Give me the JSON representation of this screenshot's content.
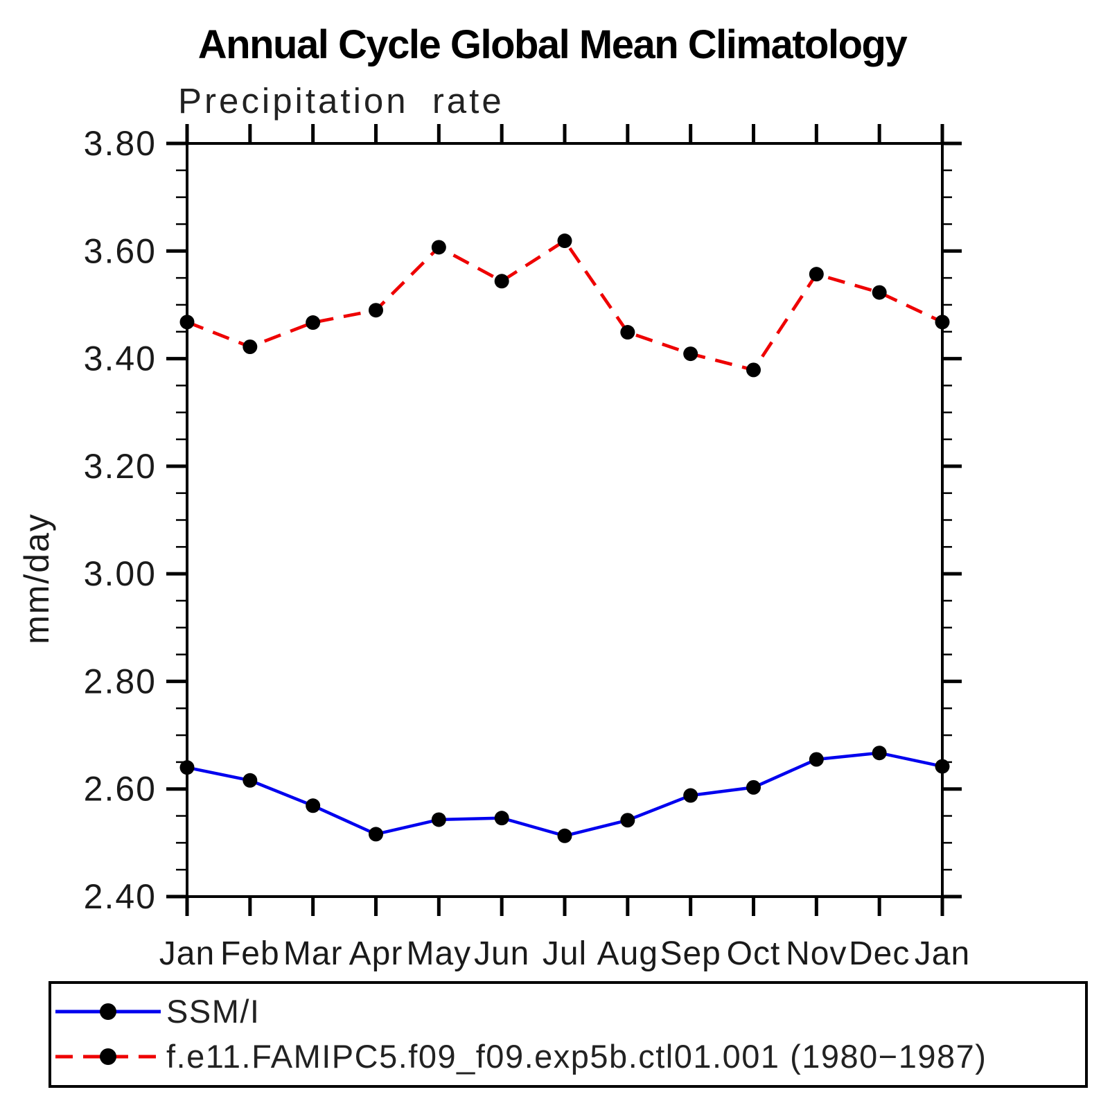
{
  "page": {
    "background_color": "#ffffff",
    "text_color": "#1a1a1a"
  },
  "chart_data": {
    "type": "line",
    "title": "Annual Cycle Global Mean Climatology",
    "subtitle": "Precipitation rate",
    "ylabel": "mm/day",
    "xlabel": "",
    "x_categories": [
      "Jan",
      "Feb",
      "Mar",
      "Apr",
      "May",
      "Jun",
      "Jul",
      "Aug",
      "Sep",
      "Oct",
      "Nov",
      "Dec",
      "Jan"
    ],
    "ylim": [
      2.4,
      3.8
    ],
    "y_major_step": 0.2,
    "y_minor_step": 0.05,
    "y_tick_labels": [
      "3.80",
      "3.60",
      "3.40",
      "3.20",
      "3.00",
      "2.80",
      "2.60",
      "2.40"
    ],
    "grid": "off",
    "axis_style": "boxed-outward-ticks",
    "legend_position": "bottom-left-box",
    "series": [
      {
        "name": "SSM/I",
        "line_style": "solid",
        "color": "#0000ee",
        "marker": "filled-circle",
        "marker_color": "#000000",
        "values": [
          2.64,
          2.616,
          2.569,
          2.516,
          2.543,
          2.546,
          2.513,
          2.542,
          2.588,
          2.603,
          2.655,
          2.667,
          2.642
        ]
      },
      {
        "name": "f.e11.FAMIPC5.f09_f09.exp5b.ctl01.001 (1980−1987)",
        "line_style": "dashed",
        "color": "#ee0000",
        "marker": "filled-circle",
        "marker_color": "#000000",
        "values": [
          3.468,
          3.422,
          3.467,
          3.49,
          3.607,
          3.544,
          3.619,
          3.449,
          3.409,
          3.379,
          3.557,
          3.523,
          3.468
        ]
      }
    ]
  }
}
